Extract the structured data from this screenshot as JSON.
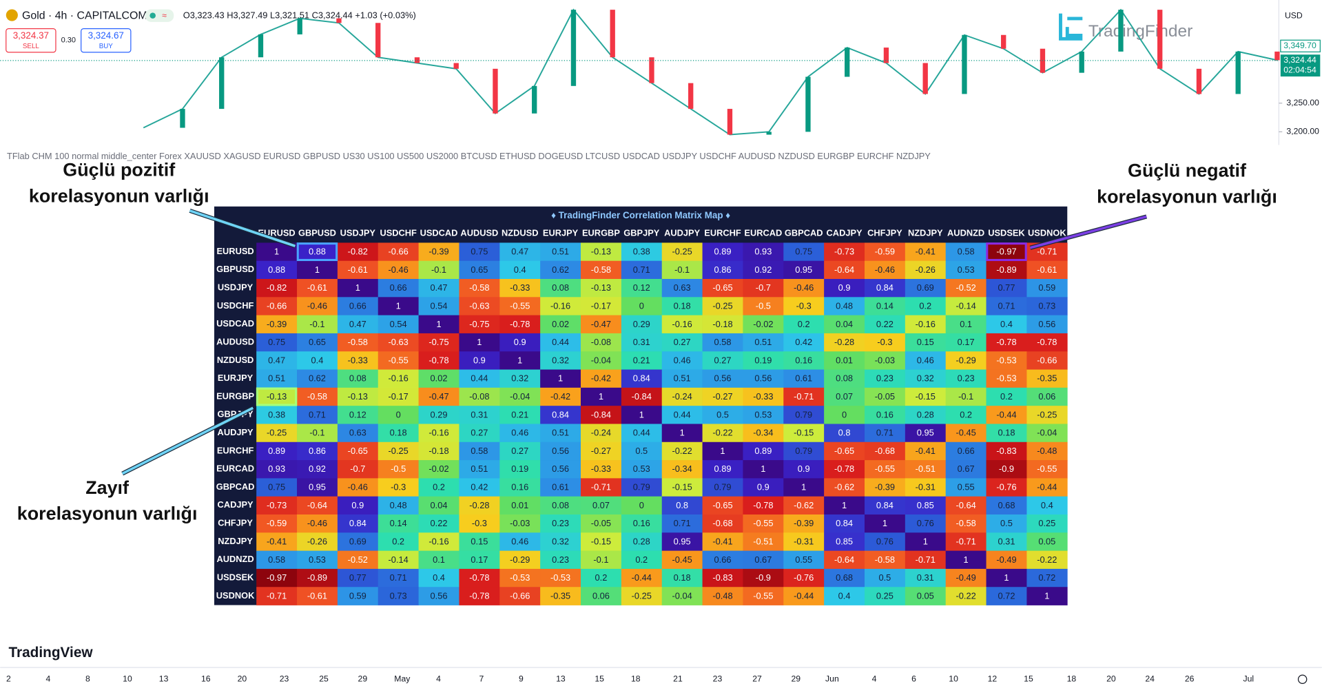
{
  "header": {
    "symbol": "Gold · 4h · CAPITALCOM",
    "ohlc": "O3,323.43 H3,327.49 L3,321.51 C3,324.44 +1.03 (+0.03%)",
    "sell_price": "3,324.37",
    "sell_label": "SELL",
    "spread": "0.30",
    "buy_price": "3,324.67",
    "buy_label": "BUY"
  },
  "price_axis": {
    "currency": "USD",
    "ylim": [
      3180,
      3430
    ],
    "ticks": [
      {
        "value": 3250,
        "label": "3,250.00"
      },
      {
        "value": 3200,
        "label": "3,200.00"
      }
    ],
    "marker": {
      "value": 3349.7,
      "label": "3,349.70"
    },
    "current": {
      "value": 3324.44,
      "label": "3,324.44"
    },
    "countdown": "02:04:54"
  },
  "price_chart": {
    "closes": [
      3207,
      3240,
      3330,
      3370,
      3398,
      3390,
      3330,
      3320,
      3310,
      3232,
      3280,
      3413,
      3330,
      3285,
      3240,
      3195,
      3200,
      3296,
      3347,
      3320,
      3266,
      3369,
      3345,
      3303,
      3340,
      3413,
      3310,
      3266,
      3340,
      3325
    ]
  },
  "watermark": "TradingFinder",
  "indicator_line": "TFlab CHM 100 normal middle_center Forex XAUUSD XAGUSD EURUSD GBPUSD US30 US100 US500 US2000 BTCUSD ETHUSD DOGEUSD LTCUSD USDCAD USDJPY USDCHF AUDUSD NZDUSD EURGBP EURCHF NZDJPY",
  "annotations": [
    {
      "lines": [
        "Güçlü pozitif",
        "korelasyonun varlığı"
      ]
    },
    {
      "lines": [
        "Güçlü negatif",
        "korelasyonun varlığı"
      ]
    },
    {
      "lines": [
        "Zayıf",
        "korelasyonun varlığı"
      ]
    }
  ],
  "matrix": {
    "title": "♦ TradingFinder Correlation Matrix Map ♦",
    "columns": [
      "EURUSD",
      "GBPUSD",
      "USDJPY",
      "USDCHF",
      "USDCAD",
      "AUDUSD",
      "NZDUSD",
      "EURJPY",
      "EURGBP",
      "GBPJPY",
      "AUDJPY",
      "EURCHF",
      "EURCAD",
      "GBPCAD",
      "CADJPY",
      "CHFJPY",
      "NZDJPY",
      "AUDNZD",
      "USDSEK",
      "USDNOK"
    ],
    "rows": [
      {
        "label": "EURUSD",
        "values": [
          1,
          0.88,
          -0.82,
          -0.66,
          -0.39,
          0.75,
          0.47,
          0.51,
          -0.13,
          0.38,
          -0.25,
          0.89,
          0.93,
          0.75,
          -0.73,
          -0.59,
          -0.41,
          0.58,
          -0.97,
          -0.71
        ]
      },
      {
        "label": "GBPUSD",
        "values": [
          0.88,
          1,
          -0.61,
          -0.46,
          -0.1,
          0.65,
          0.4,
          0.62,
          -0.58,
          0.71,
          -0.1,
          0.86,
          0.92,
          0.95,
          -0.64,
          -0.46,
          -0.26,
          0.53,
          -0.89,
          -0.61
        ]
      },
      {
        "label": "USDJPY",
        "values": [
          -0.82,
          -0.61,
          1,
          0.66,
          0.47,
          -0.58,
          -0.33,
          0.08,
          -0.13,
          0.12,
          0.63,
          -0.65,
          -0.7,
          -0.46,
          0.9,
          0.84,
          0.69,
          -0.52,
          0.77,
          0.59
        ]
      },
      {
        "label": "USDCHF",
        "values": [
          -0.66,
          -0.46,
          0.66,
          1,
          0.54,
          -0.63,
          -0.55,
          -0.16,
          -0.17,
          0,
          0.18,
          -0.25,
          -0.5,
          -0.3,
          0.48,
          0.14,
          0.2,
          -0.14,
          0.71,
          0.73
        ]
      },
      {
        "label": "USDCAD",
        "values": [
          -0.39,
          -0.1,
          0.47,
          0.54,
          1,
          -0.75,
          -0.78,
          0.02,
          -0.47,
          0.29,
          -0.16,
          -0.18,
          -0.02,
          0.2,
          0.04,
          0.22,
          -0.16,
          0.1,
          0.4,
          0.56
        ]
      },
      {
        "label": "AUDUSD",
        "values": [
          0.75,
          0.65,
          -0.58,
          -0.63,
          -0.75,
          1,
          0.9,
          0.44,
          -0.08,
          0.31,
          0.27,
          0.58,
          0.51,
          0.42,
          -0.28,
          -0.3,
          0.15,
          0.17,
          -0.78,
          -0.78
        ]
      },
      {
        "label": "NZDUSD",
        "values": [
          0.47,
          0.4,
          -0.33,
          -0.55,
          -0.78,
          0.9,
          1,
          0.32,
          -0.04,
          0.21,
          0.46,
          0.27,
          0.19,
          0.16,
          0.01,
          -0.03,
          0.46,
          -0.29,
          -0.53,
          -0.66
        ]
      },
      {
        "label": "EURJPY",
        "values": [
          0.51,
          0.62,
          0.08,
          -0.16,
          0.02,
          0.44,
          0.32,
          1,
          -0.42,
          0.84,
          0.51,
          0.56,
          0.56,
          0.61,
          0.08,
          0.23,
          0.32,
          0.23,
          -0.53,
          -0.35
        ]
      },
      {
        "label": "EURGBP",
        "values": [
          -0.13,
          -0.58,
          -0.13,
          -0.17,
          -0.47,
          -0.08,
          -0.04,
          -0.42,
          1,
          -0.84,
          -0.24,
          -0.27,
          -0.33,
          -0.71,
          0.07,
          -0.05,
          -0.15,
          -0.1,
          0.2,
          0.06
        ]
      },
      {
        "label": "GBPJPY",
        "values": [
          0.38,
          0.71,
          0.12,
          0,
          0.29,
          0.31,
          0.21,
          0.84,
          -0.84,
          1,
          0.44,
          0.5,
          0.53,
          0.79,
          0,
          0.16,
          0.28,
          0.2,
          -0.44,
          -0.25
        ]
      },
      {
        "label": "AUDJPY",
        "values": [
          -0.25,
          -0.1,
          0.63,
          0.18,
          -0.16,
          0.27,
          0.46,
          0.51,
          -0.24,
          0.44,
          1,
          -0.22,
          -0.34,
          -0.15,
          0.8,
          0.71,
          0.95,
          -0.45,
          0.18,
          -0.04
        ]
      },
      {
        "label": "EURCHF",
        "values": [
          0.89,
          0.86,
          -0.65,
          -0.25,
          -0.18,
          0.58,
          0.27,
          0.56,
          -0.27,
          0.5,
          -0.22,
          1,
          0.89,
          0.79,
          -0.65,
          -0.68,
          -0.41,
          0.66,
          -0.83,
          -0.48
        ]
      },
      {
        "label": "EURCAD",
        "values": [
          0.93,
          0.92,
          -0.7,
          -0.5,
          -0.02,
          0.51,
          0.19,
          0.56,
          -0.33,
          0.53,
          -0.34,
          0.89,
          1,
          0.9,
          -0.78,
          -0.55,
          -0.51,
          0.67,
          -0.9,
          -0.55
        ]
      },
      {
        "label": "GBPCAD",
        "values": [
          0.75,
          0.95,
          -0.46,
          -0.3,
          0.2,
          0.42,
          0.16,
          0.61,
          -0.71,
          0.79,
          -0.15,
          0.79,
          0.9,
          1,
          -0.62,
          -0.39,
          -0.31,
          0.55,
          -0.76,
          -0.44
        ]
      },
      {
        "label": "CADJPY",
        "values": [
          -0.73,
          -0.64,
          0.9,
          0.48,
          0.04,
          -0.28,
          0.01,
          0.08,
          0.07,
          0,
          0.8,
          -0.65,
          -0.78,
          -0.62,
          1,
          0.84,
          0.85,
          -0.64,
          0.68,
          0.4
        ]
      },
      {
        "label": "CHFJPY",
        "values": [
          -0.59,
          -0.46,
          0.84,
          0.14,
          0.22,
          -0.3,
          -0.03,
          0.23,
          -0.05,
          0.16,
          0.71,
          -0.68,
          -0.55,
          -0.39,
          0.84,
          1,
          0.76,
          -0.58,
          0.5,
          0.25
        ]
      },
      {
        "label": "NZDJPY",
        "values": [
          -0.41,
          -0.26,
          0.69,
          0.2,
          -0.16,
          0.15,
          0.46,
          0.32,
          -0.15,
          0.28,
          0.95,
          -0.41,
          -0.51,
          -0.31,
          0.85,
          0.76,
          1,
          -0.71,
          0.31,
          0.05
        ]
      },
      {
        "label": "AUDNZD",
        "values": [
          0.58,
          0.53,
          -0.52,
          -0.14,
          0.1,
          0.17,
          -0.29,
          0.23,
          -0.1,
          0.2,
          -0.45,
          0.66,
          0.67,
          0.55,
          -0.64,
          -0.58,
          -0.71,
          1,
          -0.49,
          -0.22
        ]
      },
      {
        "label": "USDSEK",
        "values": [
          -0.97,
          -0.89,
          0.77,
          0.71,
          0.4,
          -0.78,
          -0.53,
          -0.53,
          0.2,
          -0.44,
          0.18,
          -0.83,
          -0.9,
          -0.76,
          0.68,
          0.5,
          0.31,
          -0.49,
          1,
          0.72
        ]
      },
      {
        "label": "USDNOK",
        "values": [
          -0.71,
          -0.61,
          0.59,
          0.73,
          0.56,
          -0.78,
          -0.66,
          -0.35,
          0.06,
          -0.25,
          -0.04,
          -0.48,
          -0.55,
          -0.44,
          0.4,
          0.25,
          0.05,
          -0.22,
          0.72,
          1
        ]
      }
    ]
  },
  "brand": "TradingView",
  "time_axis": [
    "2",
    "4",
    "8",
    "10",
    "13",
    "16",
    "20",
    "23",
    "25",
    "29",
    "May",
    "4",
    "7",
    "9",
    "13",
    "15",
    "18",
    "21",
    "23",
    "27",
    "29",
    "Jun",
    "4",
    "6",
    "10",
    "12",
    "15",
    "18",
    "20",
    "24",
    "26",
    "Jul"
  ]
}
